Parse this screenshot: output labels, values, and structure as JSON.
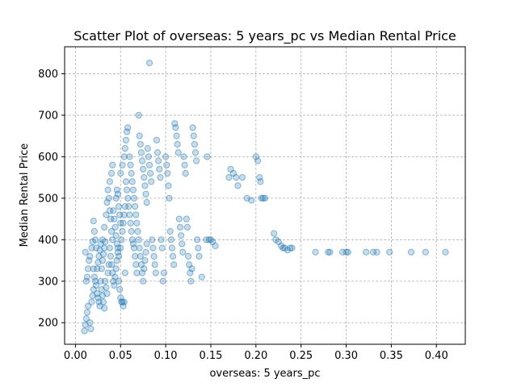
{
  "chart_data": {
    "type": "scatter",
    "title": "Scatter Plot of overseas: 5 years_pc vs Median Rental Price",
    "xlabel": "overseas: 5 years_pc",
    "ylabel": "Median Rental Price",
    "xlim": [
      -0.012,
      0.432
    ],
    "ylim": [
      148,
      865
    ],
    "xticks": [
      0.0,
      0.05,
      0.1,
      0.15,
      0.2,
      0.25,
      0.3,
      0.35,
      0.4
    ],
    "xtick_labels": [
      "0.00",
      "0.05",
      "0.10",
      "0.15",
      "0.20",
      "0.25",
      "0.30",
      "0.35",
      "0.40"
    ],
    "yticks": [
      200,
      300,
      400,
      500,
      600,
      700,
      800
    ],
    "ytick_labels": [
      "200",
      "300",
      "400",
      "500",
      "600",
      "700",
      "800"
    ],
    "grid": true,
    "marker_color": "#1f77b4",
    "series": [
      {
        "points": [
          [
            0.01,
            180
          ],
          [
            0.011,
            195
          ],
          [
            0.012,
            210
          ],
          [
            0.013,
            225
          ],
          [
            0.014,
            240
          ],
          [
            0.012,
            300
          ],
          [
            0.013,
            310
          ],
          [
            0.011,
            370
          ],
          [
            0.014,
            330
          ],
          [
            0.015,
            350
          ],
          [
            0.016,
            200
          ],
          [
            0.017,
            185
          ],
          [
            0.018,
            250
          ],
          [
            0.019,
            265
          ],
          [
            0.02,
            280
          ],
          [
            0.016,
            360
          ],
          [
            0.018,
            380
          ],
          [
            0.019,
            395
          ],
          [
            0.02,
            330
          ],
          [
            0.021,
            310
          ],
          [
            0.02,
            445
          ],
          [
            0.021,
            420
          ],
          [
            0.022,
            400
          ],
          [
            0.023,
            380
          ],
          [
            0.022,
            300
          ],
          [
            0.023,
            290
          ],
          [
            0.024,
            270
          ],
          [
            0.025,
            260
          ],
          [
            0.026,
            250
          ],
          [
            0.027,
            240
          ],
          [
            0.024,
            330
          ],
          [
            0.025,
            345
          ],
          [
            0.026,
            360
          ],
          [
            0.027,
            375
          ],
          [
            0.028,
            390
          ],
          [
            0.028,
            300
          ],
          [
            0.029,
            280
          ],
          [
            0.03,
            265
          ],
          [
            0.031,
            250
          ],
          [
            0.032,
            235
          ],
          [
            0.029,
            330
          ],
          [
            0.03,
            350
          ],
          [
            0.031,
            365
          ],
          [
            0.032,
            380
          ],
          [
            0.033,
            395
          ],
          [
            0.033,
            300
          ],
          [
            0.034,
            285
          ],
          [
            0.035,
            270
          ],
          [
            0.036,
            320
          ],
          [
            0.037,
            340
          ],
          [
            0.03,
            400
          ],
          [
            0.032,
            430
          ],
          [
            0.034,
            460
          ],
          [
            0.035,
            490
          ],
          [
            0.036,
            520
          ],
          [
            0.037,
            500
          ],
          [
            0.038,
            470
          ],
          [
            0.039,
            450
          ],
          [
            0.04,
            420
          ],
          [
            0.041,
            400
          ],
          [
            0.038,
            380
          ],
          [
            0.039,
            360
          ],
          [
            0.04,
            340
          ],
          [
            0.041,
            320
          ],
          [
            0.042,
            300
          ],
          [
            0.043,
            290
          ],
          [
            0.044,
            310
          ],
          [
            0.045,
            330
          ],
          [
            0.046,
            350
          ],
          [
            0.047,
            370
          ],
          [
            0.038,
            540
          ],
          [
            0.04,
            560
          ],
          [
            0.041,
            580
          ],
          [
            0.042,
            470
          ],
          [
            0.043,
            450
          ],
          [
            0.044,
            430
          ],
          [
            0.045,
            410
          ],
          [
            0.046,
            390
          ],
          [
            0.047,
            380
          ],
          [
            0.048,
            360
          ],
          [
            0.045,
            500
          ],
          [
            0.046,
            520
          ],
          [
            0.047,
            510
          ],
          [
            0.048,
            480
          ],
          [
            0.049,
            460
          ],
          [
            0.05,
            440
          ],
          [
            0.048,
            300
          ],
          [
            0.049,
            280
          ],
          [
            0.05,
            260
          ],
          [
            0.051,
            250
          ],
          [
            0.05,
            380
          ],
          [
            0.051,
            400
          ],
          [
            0.052,
            420
          ],
          [
            0.053,
            440
          ],
          [
            0.054,
            460
          ],
          [
            0.055,
            480
          ],
          [
            0.052,
            250
          ],
          [
            0.053,
            240
          ],
          [
            0.054,
            250
          ],
          [
            0.055,
            320
          ],
          [
            0.05,
            560
          ],
          [
            0.052,
            580
          ],
          [
            0.054,
            600
          ],
          [
            0.055,
            620
          ],
          [
            0.056,
            640
          ],
          [
            0.057,
            660
          ],
          [
            0.058,
            670
          ],
          [
            0.056,
            540
          ],
          [
            0.057,
            520
          ],
          [
            0.058,
            500
          ],
          [
            0.059,
            480
          ],
          [
            0.06,
            460
          ],
          [
            0.061,
            440
          ],
          [
            0.062,
            420
          ],
          [
            0.063,
            400
          ],
          [
            0.064,
            390
          ],
          [
            0.065,
            380
          ],
          [
            0.066,
            360
          ],
          [
            0.067,
            340
          ],
          [
            0.068,
            320
          ],
          [
            0.06,
            600
          ],
          [
            0.061,
            580
          ],
          [
            0.062,
            560
          ],
          [
            0.063,
            540
          ],
          [
            0.064,
            520
          ],
          [
            0.065,
            500
          ],
          [
            0.066,
            480
          ],
          [
            0.067,
            460
          ],
          [
            0.068,
            440
          ],
          [
            0.069,
            420
          ],
          [
            0.07,
            700
          ],
          [
            0.071,
            650
          ],
          [
            0.072,
            630
          ],
          [
            0.073,
            610
          ],
          [
            0.074,
            590
          ],
          [
            0.075,
            570
          ],
          [
            0.076,
            550
          ],
          [
            0.077,
            530
          ],
          [
            0.078,
            510
          ],
          [
            0.079,
            490
          ],
          [
            0.07,
            400
          ],
          [
            0.071,
            380
          ],
          [
            0.072,
            360
          ],
          [
            0.073,
            340
          ],
          [
            0.074,
            320
          ],
          [
            0.075,
            300
          ],
          [
            0.076,
            330
          ],
          [
            0.077,
            350
          ],
          [
            0.078,
            370
          ],
          [
            0.079,
            390
          ],
          [
            0.08,
            620
          ],
          [
            0.081,
            600
          ],
          [
            0.082,
            580
          ],
          [
            0.083,
            560
          ],
          [
            0.084,
            540
          ],
          [
            0.085,
            400
          ],
          [
            0.086,
            380
          ],
          [
            0.087,
            360
          ],
          [
            0.088,
            340
          ],
          [
            0.089,
            320
          ],
          [
            0.082,
            826
          ],
          [
            0.09,
            640
          ],
          [
            0.091,
            610
          ],
          [
            0.092,
            590
          ],
          [
            0.093,
            570
          ],
          [
            0.094,
            550
          ],
          [
            0.095,
            400
          ],
          [
            0.096,
            380
          ],
          [
            0.097,
            300
          ],
          [
            0.098,
            320
          ],
          [
            0.1,
            600
          ],
          [
            0.101,
            580
          ],
          [
            0.102,
            560
          ],
          [
            0.103,
            530
          ],
          [
            0.104,
            500
          ],
          [
            0.105,
            420
          ],
          [
            0.106,
            400
          ],
          [
            0.107,
            380
          ],
          [
            0.108,
            360
          ],
          [
            0.109,
            340
          ],
          [
            0.11,
            680
          ],
          [
            0.111,
            670
          ],
          [
            0.112,
            650
          ],
          [
            0.113,
            630
          ],
          [
            0.114,
            610
          ],
          [
            0.115,
            450
          ],
          [
            0.116,
            430
          ],
          [
            0.117,
            410
          ],
          [
            0.118,
            390
          ],
          [
            0.119,
            370
          ],
          [
            0.12,
            600
          ],
          [
            0.121,
            580
          ],
          [
            0.122,
            560
          ],
          [
            0.123,
            450
          ],
          [
            0.124,
            430
          ],
          [
            0.125,
            360
          ],
          [
            0.126,
            340
          ],
          [
            0.127,
            320
          ],
          [
            0.128,
            300
          ],
          [
            0.129,
            330
          ],
          [
            0.13,
            670
          ],
          [
            0.131,
            650
          ],
          [
            0.132,
            630
          ],
          [
            0.133,
            610
          ],
          [
            0.134,
            590
          ],
          [
            0.135,
            400
          ],
          [
            0.136,
            380
          ],
          [
            0.137,
            360
          ],
          [
            0.14,
            310
          ],
          [
            0.145,
            400
          ],
          [
            0.146,
            600
          ],
          [
            0.148,
            400
          ],
          [
            0.15,
            400
          ],
          [
            0.152,
            395
          ],
          [
            0.155,
            385
          ],
          [
            0.17,
            550
          ],
          [
            0.172,
            570
          ],
          [
            0.175,
            560
          ],
          [
            0.178,
            550
          ],
          [
            0.18,
            530
          ],
          [
            0.185,
            550
          ],
          [
            0.19,
            500
          ],
          [
            0.195,
            495
          ],
          [
            0.2,
            600
          ],
          [
            0.202,
            590
          ],
          [
            0.204,
            550
          ],
          [
            0.205,
            540
          ],
          [
            0.206,
            500
          ],
          [
            0.208,
            500
          ],
          [
            0.21,
            500
          ],
          [
            0.22,
            415
          ],
          [
            0.222,
            400
          ],
          [
            0.225,
            395
          ],
          [
            0.228,
            385
          ],
          [
            0.23,
            380
          ],
          [
            0.232,
            380
          ],
          [
            0.235,
            375
          ],
          [
            0.238,
            380
          ],
          [
            0.24,
            380
          ],
          [
            0.266,
            370
          ],
          [
            0.28,
            370
          ],
          [
            0.282,
            370
          ],
          [
            0.296,
            370
          ],
          [
            0.3,
            370
          ],
          [
            0.302,
            370
          ],
          [
            0.322,
            370
          ],
          [
            0.33,
            370
          ],
          [
            0.334,
            370
          ],
          [
            0.348,
            370
          ],
          [
            0.372,
            370
          ],
          [
            0.388,
            370
          ],
          [
            0.41,
            370
          ]
        ]
      }
    ]
  }
}
